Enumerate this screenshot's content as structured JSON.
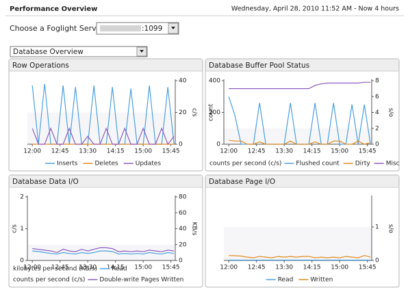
{
  "header": {
    "title": "Performance Overview",
    "timestamp": "Wednesday, April 28, 2010 11:52 AM - Now 4 hours"
  },
  "server": {
    "label": "Choose a Foglight Server",
    "value": ":1099"
  },
  "view": {
    "value": "Database Overview"
  },
  "chart_data": [
    {
      "type": "line",
      "title": "Row Operations",
      "x": [
        0,
        10,
        20,
        30,
        40,
        50,
        60,
        70,
        80,
        90,
        100,
        110,
        120,
        130,
        140,
        150,
        160,
        170,
        180,
        190,
        200,
        210,
        220,
        230
      ],
      "xlim": [
        -8,
        232
      ],
      "xticks": [
        {
          "value": 0,
          "label": "12:00"
        },
        {
          "value": 45,
          "label": "12:45"
        },
        {
          "value": 90,
          "label": "13:30"
        },
        {
          "value": 135,
          "label": "14:15"
        },
        {
          "value": 180,
          "label": "15:00"
        },
        {
          "value": 225,
          "label": "15:45"
        }
      ],
      "y2lim": [
        0,
        40
      ],
      "y2ticks": [
        0,
        20,
        40
      ],
      "y2label": "c/s",
      "series": [
        {
          "name": "Inserts",
          "color": "#4a9fe0",
          "axis": "y2",
          "values": [
            37,
            0,
            38,
            0,
            0,
            37,
            0,
            36,
            0,
            0,
            37,
            0,
            0,
            36,
            0,
            0,
            35,
            0,
            0,
            37,
            0,
            0,
            36,
            0
          ]
        },
        {
          "name": "Deletes",
          "color": "#e08a1e",
          "axis": "y2",
          "values": [
            0,
            0,
            0,
            0,
            0,
            0,
            0,
            0,
            0,
            0,
            0,
            0,
            0,
            0,
            0,
            0,
            0,
            0,
            0,
            0,
            0,
            0,
            0,
            0
          ]
        },
        {
          "name": "Updates",
          "color": "#8a5cc0",
          "axis": "y2",
          "values": [
            10,
            0,
            0,
            10,
            0,
            0,
            10,
            0,
            0,
            5,
            0,
            0,
            10,
            0,
            0,
            10,
            0,
            0,
            10,
            0,
            0,
            10,
            0,
            5
          ]
        }
      ]
    },
    {
      "type": "line",
      "title": "Database Buffer Pool Status",
      "x": [
        0,
        10,
        20,
        30,
        40,
        50,
        60,
        70,
        80,
        90,
        100,
        110,
        120,
        130,
        140,
        150,
        160,
        170,
        180,
        190,
        200,
        210,
        220,
        230
      ],
      "xlim": [
        -8,
        232
      ],
      "xticks": [
        {
          "value": 0,
          "label": "12:00"
        },
        {
          "value": 45,
          "label": "12:45"
        },
        {
          "value": 90,
          "label": "13:30"
        },
        {
          "value": 135,
          "label": "14:15"
        },
        {
          "value": 180,
          "label": "15:00"
        },
        {
          "value": 225,
          "label": "15:45"
        }
      ],
      "ylim": [
        0,
        400
      ],
      "yticks": [
        0,
        200,
        400
      ],
      "ylabel": "count",
      "y2lim": [
        0,
        8
      ],
      "y2ticks": [
        0,
        2,
        4,
        6,
        8
      ],
      "y2label": "s/o",
      "legend_notes": [
        "counts per second (c/s)"
      ],
      "series": [
        {
          "name": "Flushed count",
          "color": "#4a9fe0",
          "axis": "y",
          "values": [
            300,
            180,
            0,
            0,
            0,
            260,
            0,
            0,
            0,
            0,
            260,
            0,
            0,
            0,
            260,
            0,
            0,
            260,
            0,
            0,
            250,
            0,
            250,
            0
          ]
        },
        {
          "name": "Dirty",
          "color": "#e08a1e",
          "axis": "y",
          "values": [
            25,
            20,
            20,
            0,
            0,
            15,
            0,
            0,
            0,
            0,
            20,
            0,
            0,
            0,
            15,
            0,
            0,
            20,
            20,
            0,
            0,
            20,
            0,
            10
          ]
        },
        {
          "name": "Misc",
          "color": "#8a5cc0",
          "axis": "y2",
          "values": [
            7,
            7,
            7,
            7,
            7,
            7,
            7,
            7,
            7,
            7,
            7,
            7,
            7,
            7,
            7.4,
            7.6,
            7.7,
            7.7,
            7.7,
            7.7,
            7.7,
            7.7,
            7.8,
            7.8
          ]
        }
      ]
    },
    {
      "type": "line",
      "title": "Database Data I/O",
      "x": [
        0,
        10,
        20,
        30,
        40,
        50,
        60,
        70,
        80,
        90,
        100,
        110,
        120,
        130,
        140,
        150,
        160,
        170,
        180,
        190,
        200,
        210,
        220,
        230
      ],
      "xlim": [
        -8,
        232
      ],
      "xticks": [
        {
          "value": 0,
          "label": "12:00"
        },
        {
          "value": 45,
          "label": "12:45"
        },
        {
          "value": 90,
          "label": "13:30"
        },
        {
          "value": 135,
          "label": "14:15"
        },
        {
          "value": 180,
          "label": "15:00"
        },
        {
          "value": 225,
          "label": "15:45"
        }
      ],
      "ylim": [
        0,
        2
      ],
      "yticks": [
        0,
        1,
        2
      ],
      "ylabel": "c/s",
      "y2lim": [
        0,
        80
      ],
      "y2ticks": [
        0,
        20,
        40,
        60,
        80
      ],
      "y2label": "KB/s",
      "legend_notes": [
        "kilobytes per second (KB/s)",
        "counts per second (c/s)"
      ],
      "series": [
        {
          "name": "Read",
          "color": "#4a9fe0",
          "axis": "y",
          "values": [
            0.3,
            0.28,
            0.25,
            0.22,
            0.2,
            0.25,
            0.22,
            0.2,
            0.25,
            0.22,
            0.25,
            0.3,
            0.3,
            0.28,
            0.2,
            0.22,
            0.2,
            0.22,
            0.2,
            0.25,
            0.22,
            0.2,
            0.25,
            0.22
          ]
        },
        {
          "name": "Double-write Pages Written",
          "color": "#8a5cc0",
          "axis": "y2",
          "values": [
            15,
            14,
            13,
            12,
            10,
            14,
            12,
            11,
            14,
            12,
            14,
            16,
            16,
            15,
            11,
            12,
            11,
            12,
            11,
            13,
            12,
            11,
            13,
            12
          ]
        }
      ]
    },
    {
      "type": "line",
      "title": "Database Page I/O",
      "x": [
        0,
        10,
        20,
        30,
        40,
        50,
        60,
        70,
        80,
        90,
        100,
        110,
        120,
        130,
        140,
        150,
        160,
        170,
        180,
        190,
        200,
        210,
        220,
        230
      ],
      "xlim": [
        -8,
        232
      ],
      "xticks": [
        {
          "value": 0,
          "label": "12:00"
        },
        {
          "value": 45,
          "label": "12:45"
        },
        {
          "value": 90,
          "label": "13:30"
        },
        {
          "value": 135,
          "label": "14:15"
        },
        {
          "value": 180,
          "label": "15:00"
        },
        {
          "value": 225,
          "label": "15:45"
        }
      ],
      "y2lim": [
        0,
        1.9
      ],
      "y2ticks": [
        0,
        1
      ],
      "y2label": "s/o",
      "series": [
        {
          "name": "Read",
          "color": "#4a9fe0",
          "axis": "y2",
          "values": [
            0.01,
            0.01,
            0.01,
            0.01,
            0.01,
            0.01,
            0.01,
            0.01,
            0.01,
            0.01,
            0.01,
            0.01,
            0.01,
            0.01,
            0.01,
            0.01,
            0.01,
            0.01,
            0.01,
            0.01,
            0.01,
            0.01,
            0.01,
            0.01
          ]
        },
        {
          "name": "Written",
          "color": "#e08a1e",
          "axis": "y2",
          "values": [
            0.15,
            0.14,
            0.13,
            0.1,
            0.08,
            0.12,
            0.1,
            0.08,
            0.12,
            0.1,
            0.12,
            0.1,
            0.12,
            0.12,
            0.08,
            0.1,
            0.08,
            0.1,
            0.08,
            0.12,
            0.1,
            0.08,
            0.15,
            0.1
          ]
        }
      ]
    }
  ]
}
